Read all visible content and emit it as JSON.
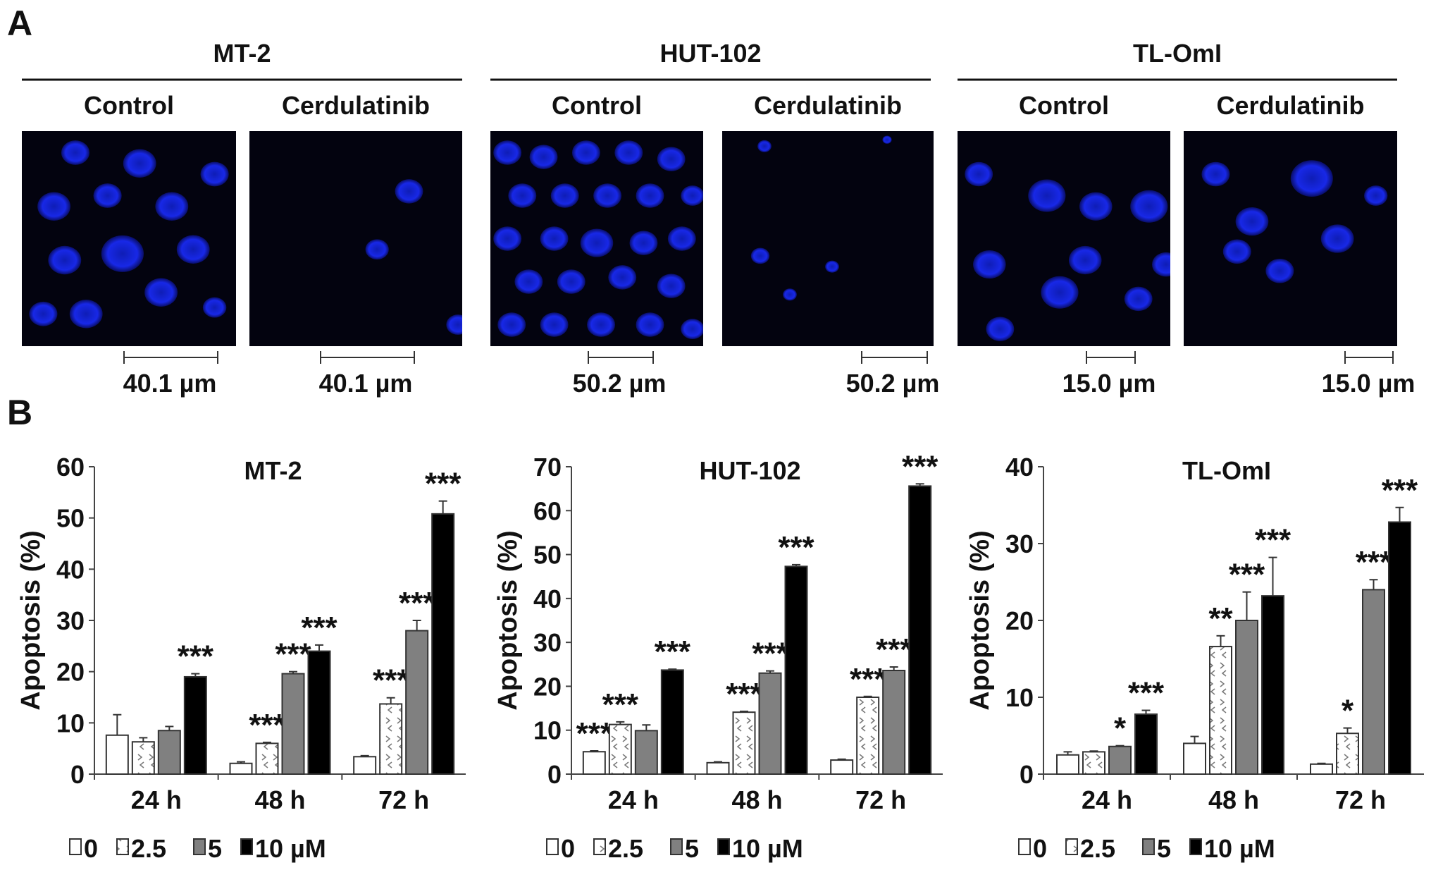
{
  "panel_a": {
    "label": "A",
    "cell_lines": [
      {
        "name": "MT-2",
        "conditions": [
          "Control",
          "Cerdulatinib"
        ],
        "scale_labels": [
          "40.1 µm",
          "40.1 µm"
        ]
      },
      {
        "name": "HUT-102",
        "conditions": [
          "Control",
          "Cerdulatinib"
        ],
        "scale_labels": [
          "50.2 µm",
          "50.2 µm"
        ]
      },
      {
        "name": "TL-OmI",
        "conditions": [
          "Control",
          "Cerdulatinib"
        ],
        "scale_labels": [
          "15.0 µm",
          "15.0 µm"
        ]
      }
    ]
  },
  "panel_b": {
    "label": "B"
  },
  "colors": {
    "nucleus": "#1a2cff",
    "background": "#03030f",
    "bar_0": "#ffffff",
    "bar_5": "#808080",
    "bar_10": "#000000"
  },
  "chart_data": [
    {
      "type": "bar",
      "title": "MT-2",
      "ylabel": "Apoptosis (%)",
      "xlabel": "",
      "ylim": [
        0,
        60
      ],
      "yticks": [
        "0",
        "10",
        "20",
        "30",
        "40",
        "50",
        "60"
      ],
      "categories": [
        "24 h",
        "48 h",
        "72 h"
      ],
      "legend": [
        "0",
        "2.5",
        "5",
        "10 µM"
      ],
      "legend_position": "bottom",
      "series": [
        {
          "name": "0",
          "values": [
            7.6,
            2.1,
            3.4
          ],
          "errors": [
            4.0,
            0.3,
            0.2
          ],
          "sig": [
            "",
            "",
            ""
          ]
        },
        {
          "name": "2.5",
          "values": [
            6.3,
            6.0,
            13.7
          ],
          "errors": [
            0.8,
            0.2,
            1.2
          ],
          "sig": [
            "",
            "***",
            "***"
          ]
        },
        {
          "name": "5",
          "values": [
            8.5,
            19.6,
            28.0
          ],
          "errors": [
            0.8,
            0.4,
            2.0
          ],
          "sig": [
            "",
            "***",
            "***"
          ]
        },
        {
          "name": "10 µM",
          "values": [
            19.0,
            24.0,
            50.8
          ],
          "errors": [
            0.6,
            1.2,
            2.5
          ],
          "sig": [
            "***",
            "***",
            "***"
          ]
        }
      ]
    },
    {
      "type": "bar",
      "title": "HUT-102",
      "ylabel": "Apoptosis (%)",
      "xlabel": "",
      "ylim": [
        0,
        70
      ],
      "yticks": [
        "0",
        "10",
        "20",
        "30",
        "40",
        "50",
        "60",
        "70"
      ],
      "categories": [
        "24 h",
        "48 h",
        "72 h"
      ],
      "legend": [
        "0",
        "2.5",
        "5",
        "10 µM"
      ],
      "legend_position": "bottom",
      "series": [
        {
          "name": "0",
          "values": [
            5.1,
            2.6,
            3.2
          ],
          "errors": [
            0.2,
            0.2,
            0.2
          ],
          "sig": [
            "***",
            "",
            ""
          ]
        },
        {
          "name": "2.5",
          "values": [
            11.3,
            14.1,
            17.5
          ],
          "errors": [
            0.6,
            0.2,
            0.2
          ],
          "sig": [
            "***",
            "***",
            "***"
          ]
        },
        {
          "name": "5",
          "values": [
            9.9,
            23.0,
            23.6
          ],
          "errors": [
            1.3,
            0.5,
            0.8
          ],
          "sig": [
            "",
            "***",
            "***"
          ]
        },
        {
          "name": "10 µM",
          "values": [
            23.7,
            47.3,
            65.6
          ],
          "errors": [
            0.2,
            0.4,
            0.5
          ],
          "sig": [
            "***",
            "***",
            "***"
          ]
        }
      ]
    },
    {
      "type": "bar",
      "title": "TL-OmI",
      "ylabel": "Apoptosis (%)",
      "xlabel": "",
      "ylim": [
        0,
        40
      ],
      "yticks": [
        "0",
        "10",
        "20",
        "30",
        "40"
      ],
      "categories": [
        "24 h",
        "48 h",
        "72 h"
      ],
      "legend": [
        "0",
        "2.5",
        "5",
        "10 µM"
      ],
      "legend_position": "bottom",
      "series": [
        {
          "name": "0",
          "values": [
            2.5,
            4.0,
            1.3
          ],
          "errors": [
            0.4,
            0.9,
            0.1
          ],
          "sig": [
            "",
            "",
            ""
          ]
        },
        {
          "name": "2.5",
          "values": [
            2.9,
            16.6,
            5.3
          ],
          "errors": [
            0.1,
            1.4,
            0.7
          ],
          "sig": [
            "",
            "**",
            "*"
          ]
        },
        {
          "name": "5",
          "values": [
            3.6,
            20.0,
            24.0
          ],
          "errors": [
            0.1,
            3.7,
            1.3
          ],
          "sig": [
            "*",
            "***",
            "***"
          ]
        },
        {
          "name": "10 µM",
          "values": [
            7.8,
            23.2,
            32.8
          ],
          "errors": [
            0.5,
            5.0,
            1.9
          ],
          "sig": [
            "***",
            "***",
            "***"
          ]
        }
      ]
    }
  ]
}
